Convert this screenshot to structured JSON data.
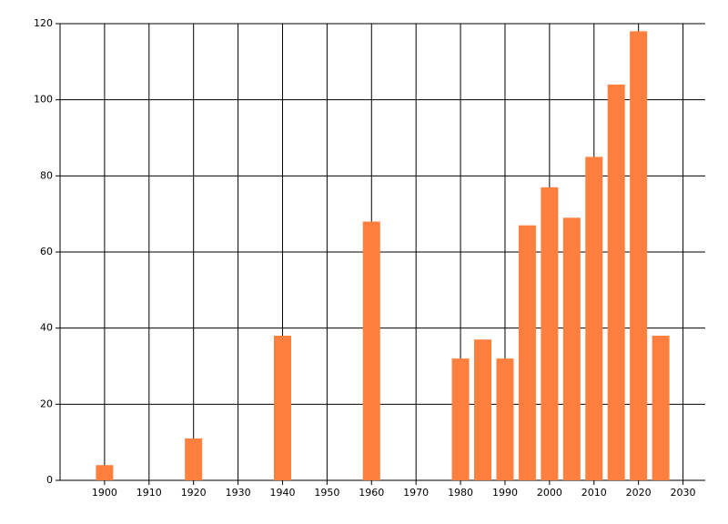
{
  "chart_data": {
    "type": "bar",
    "x": [
      1900,
      1920,
      1940,
      1960,
      1980,
      1985,
      1990,
      1995,
      2000,
      2005,
      2010,
      2015,
      2020,
      2025
    ],
    "values": [
      4,
      11,
      38,
      68,
      32,
      37,
      32,
      67,
      77,
      69,
      85,
      104,
      118,
      38
    ],
    "color": "#ff7f3f",
    "xlim": [
      1890,
      2035
    ],
    "xticks": [
      1900,
      1910,
      1920,
      1930,
      1940,
      1950,
      1960,
      1970,
      1980,
      1990,
      2000,
      2010,
      2020,
      2030
    ],
    "ylim": [
      0,
      120
    ],
    "yticks": [
      0,
      20,
      40,
      60,
      80,
      100,
      120
    ],
    "grid": true
  }
}
